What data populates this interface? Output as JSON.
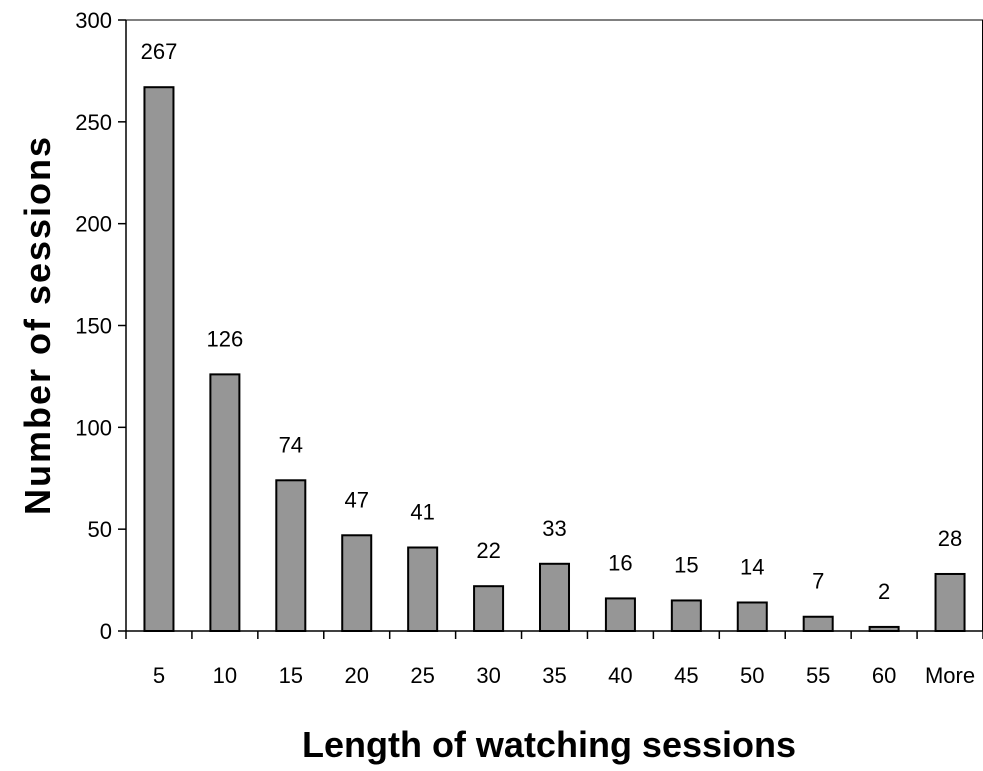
{
  "chart_data": {
    "type": "bar",
    "title": "",
    "xlabel": "Length of  watching sessions",
    "ylabel": "Number of sessions",
    "categories": [
      "5",
      "10",
      "15",
      "20",
      "25",
      "30",
      "35",
      "40",
      "45",
      "50",
      "55",
      "60",
      "More"
    ],
    "values": [
      267,
      126,
      74,
      47,
      41,
      22,
      33,
      16,
      15,
      14,
      7,
      2,
      28
    ],
    "data_labels": [
      "267",
      "126",
      "74",
      "47",
      "41",
      "22",
      "33",
      "16",
      "15",
      "14",
      "7",
      "2",
      "28"
    ],
    "ylim": [
      0,
      300
    ],
    "yticks": [
      0,
      50,
      100,
      150,
      200,
      250,
      300
    ],
    "grid": false,
    "legend": "none",
    "bar_color": "#969696",
    "bar_edge_color": "#000000"
  }
}
